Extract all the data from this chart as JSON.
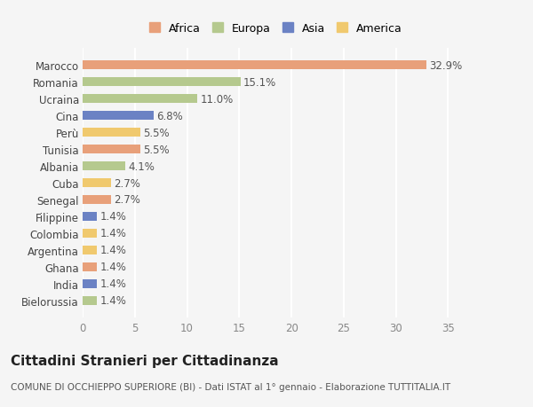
{
  "categories": [
    "Bielorussia",
    "India",
    "Ghana",
    "Argentina",
    "Colombia",
    "Filippine",
    "Senegal",
    "Cuba",
    "Albania",
    "Tunisia",
    "Perù",
    "Cina",
    "Ucraina",
    "Romania",
    "Marocco"
  ],
  "values": [
    1.4,
    1.4,
    1.4,
    1.4,
    1.4,
    1.4,
    2.7,
    2.7,
    4.1,
    5.5,
    5.5,
    6.8,
    11.0,
    15.1,
    32.9
  ],
  "colors": [
    "#b5c98e",
    "#6b82c4",
    "#e8a07a",
    "#f0c96e",
    "#f0c96e",
    "#6b82c4",
    "#e8a07a",
    "#f0c96e",
    "#b5c98e",
    "#e8a07a",
    "#f0c96e",
    "#6b82c4",
    "#b5c98e",
    "#b5c98e",
    "#e8a07a"
  ],
  "bar_height": 0.55,
  "xlim": [
    0,
    37
  ],
  "xticks": [
    0,
    5,
    10,
    15,
    20,
    25,
    30,
    35
  ],
  "title": "Cittadini Stranieri per Cittadinanza",
  "subtitle": "COMUNE DI OCCHIEPPO SUPERIORE (BI) - Dati ISTAT al 1° gennaio - Elaborazione TUTTITALIA.IT",
  "legend_labels": [
    "Africa",
    "Europa",
    "Asia",
    "America"
  ],
  "legend_colors": [
    "#e8a07a",
    "#b5c98e",
    "#6b82c4",
    "#f0c96e"
  ],
  "background_color": "#f5f5f5",
  "grid_color": "#ffffff",
  "label_fontsize": 8.5,
  "value_fontsize": 8.5,
  "title_fontsize": 11,
  "subtitle_fontsize": 7.5
}
